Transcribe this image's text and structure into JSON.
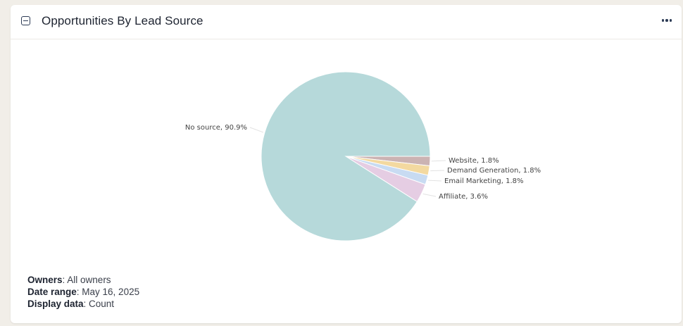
{
  "card": {
    "title": "Opportunities By Lead Source",
    "collapse_icon": "minus-square-icon",
    "more_icon": "ellipsis-horizontal-icon"
  },
  "chart_data": {
    "type": "pie",
    "title": "",
    "slices": [
      {
        "label": "No source, 90.9%",
        "name": "No source",
        "value": 90.9,
        "color": "#b6d9da"
      },
      {
        "label": "Website, 1.8%",
        "name": "Website",
        "value": 1.8,
        "color": "#cbb3b3"
      },
      {
        "label": "Demand Generation, 1.8%",
        "name": "Demand Generation",
        "value": 1.8,
        "color": "#f3d9a0"
      },
      {
        "label": "Email Marketing, 1.8%",
        "name": "Email Marketing",
        "value": 1.8,
        "color": "#c8dbf2"
      },
      {
        "label": "Affiliate, 3.6%",
        "name": "Affiliate",
        "value": 3.6,
        "color": "#e5cde3"
      }
    ]
  },
  "filters": {
    "owners_label": "Owners",
    "owners_value": ": All owners",
    "date_label": "Date range",
    "date_value": ": May 16, 2025",
    "display_label": "Display data",
    "display_value": ": Count"
  }
}
